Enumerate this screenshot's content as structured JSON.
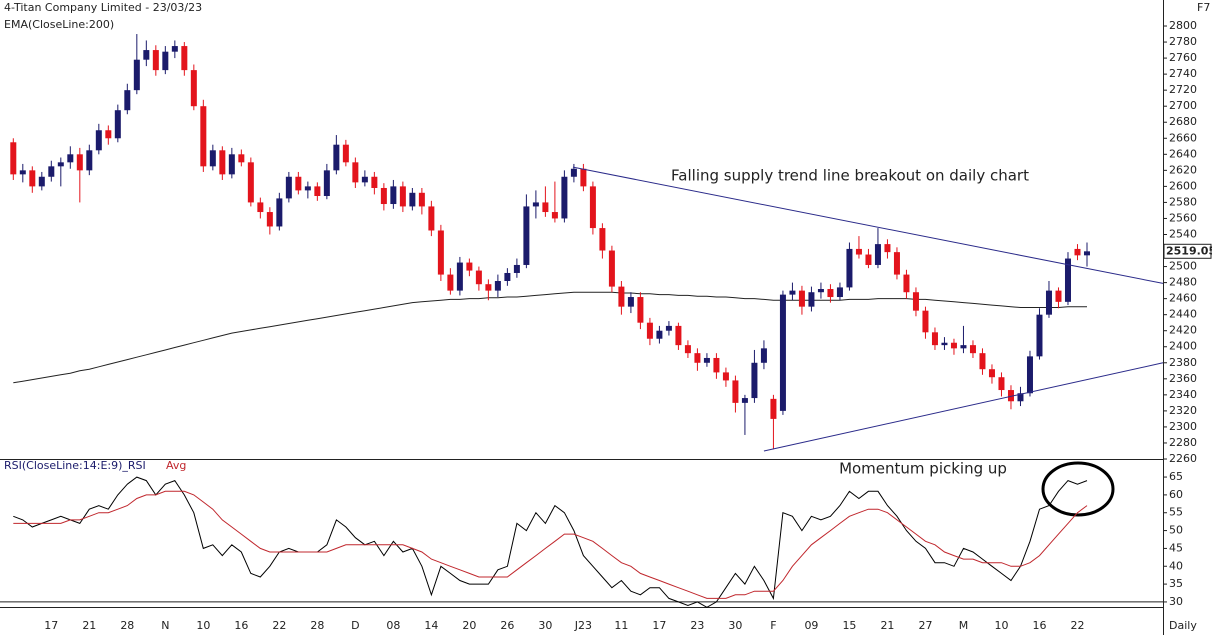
{
  "chart_data": [
    {
      "type": "candlestick",
      "title": "4-Titan Company Limited - 23/03/23",
      "corner_label": "F7",
      "x_label": "Daily",
      "annotation": "Falling supply trend line breakout on daily chart",
      "categories": [
        null,
        null,
        null,
        null,
        "17",
        null,
        null,
        null,
        "21",
        null,
        null,
        null,
        "28",
        null,
        null,
        null,
        "N",
        null,
        null,
        null,
        "10",
        null,
        null,
        null,
        "16",
        null,
        null,
        null,
        "22",
        null,
        null,
        null,
        "28",
        null,
        null,
        null,
        "D",
        null,
        null,
        null,
        "08",
        null,
        null,
        null,
        "14",
        null,
        null,
        null,
        "20",
        null,
        null,
        null,
        "26",
        null,
        null,
        null,
        "30",
        null,
        null,
        null,
        "J23",
        null,
        null,
        null,
        "11",
        null,
        null,
        null,
        "17",
        null,
        null,
        null,
        "23",
        null,
        null,
        null,
        "30",
        null,
        null,
        null,
        "F",
        null,
        null,
        null,
        "09",
        null,
        null,
        null,
        "15",
        null,
        null,
        null,
        "21",
        null,
        null,
        null,
        "27",
        null,
        null,
        null,
        "M",
        null,
        null,
        null,
        "10",
        null,
        null,
        null,
        "16",
        null,
        null,
        null,
        "22",
        null
      ],
      "xlim": [
        -1.4,
        121
      ],
      "up_color": "#1b1b6b",
      "down_color": "#e3141c",
      "candles": [
        [
          2655,
          2660,
          2608,
          2615
        ],
        [
          2615,
          2628,
          2605,
          2620
        ],
        [
          2620,
          2625,
          2592,
          2600
        ],
        [
          2600,
          2618,
          2595,
          2612
        ],
        [
          2612,
          2632,
          2606,
          2625
        ],
        [
          2625,
          2636,
          2600,
          2630
        ],
        [
          2630,
          2650,
          2622,
          2640
        ],
        [
          2640,
          2648,
          2580,
          2620
        ],
        [
          2620,
          2652,
          2614,
          2645
        ],
        [
          2645,
          2678,
          2640,
          2670
        ],
        [
          2670,
          2676,
          2652,
          2660
        ],
        [
          2660,
          2702,
          2655,
          2695
        ],
        [
          2695,
          2728,
          2690,
          2720
        ],
        [
          2720,
          2790,
          2715,
          2758
        ],
        [
          2758,
          2782,
          2750,
          2770
        ],
        [
          2770,
          2776,
          2738,
          2745
        ],
        [
          2745,
          2775,
          2740,
          2768
        ],
        [
          2768,
          2782,
          2760,
          2775
        ],
        [
          2775,
          2780,
          2738,
          2745
        ],
        [
          2745,
          2752,
          2695,
          2700
        ],
        [
          2700,
          2708,
          2618,
          2625
        ],
        [
          2625,
          2652,
          2620,
          2645
        ],
        [
          2645,
          2650,
          2608,
          2615
        ],
        [
          2615,
          2648,
          2610,
          2640
        ],
        [
          2640,
          2646,
          2625,
          2630
        ],
        [
          2630,
          2636,
          2575,
          2580
        ],
        [
          2580,
          2586,
          2560,
          2568
        ],
        [
          2568,
          2574,
          2540,
          2550
        ],
        [
          2550,
          2592,
          2545,
          2585
        ],
        [
          2585,
          2618,
          2580,
          2612
        ],
        [
          2612,
          2618,
          2590,
          2595
        ],
        [
          2595,
          2606,
          2585,
          2600
        ],
        [
          2600,
          2605,
          2582,
          2588
        ],
        [
          2588,
          2628,
          2584,
          2620
        ],
        [
          2620,
          2664,
          2615,
          2652
        ],
        [
          2652,
          2658,
          2625,
          2630
        ],
        [
          2630,
          2636,
          2598,
          2605
        ],
        [
          2605,
          2620,
          2600,
          2612
        ],
        [
          2612,
          2618,
          2590,
          2598
        ],
        [
          2598,
          2604,
          2570,
          2578
        ],
        [
          2578,
          2608,
          2572,
          2600
        ],
        [
          2600,
          2606,
          2568,
          2575
        ],
        [
          2575,
          2598,
          2570,
          2592
        ],
        [
          2592,
          2598,
          2565,
          2575
        ],
        [
          2575,
          2582,
          2538,
          2545
        ],
        [
          2545,
          2552,
          2482,
          2490
        ],
        [
          2490,
          2498,
          2465,
          2470
        ],
        [
          2470,
          2512,
          2464,
          2505
        ],
        [
          2505,
          2510,
          2488,
          2495
        ],
        [
          2495,
          2500,
          2470,
          2478
        ],
        [
          2478,
          2484,
          2458,
          2470
        ],
        [
          2470,
          2490,
          2462,
          2482
        ],
        [
          2482,
          2498,
          2476,
          2492
        ],
        [
          2492,
          2510,
          2486,
          2502
        ],
        [
          2502,
          2590,
          2498,
          2575
        ],
        [
          2575,
          2595,
          2560,
          2580
        ],
        [
          2580,
          2600,
          2562,
          2568
        ],
        [
          2568,
          2606,
          2555,
          2560
        ],
        [
          2560,
          2620,
          2555,
          2612
        ],
        [
          2612,
          2628,
          2605,
          2622
        ],
        [
          2622,
          2628,
          2594,
          2600
        ],
        [
          2600,
          2606,
          2540,
          2548
        ],
        [
          2548,
          2554,
          2510,
          2520
        ],
        [
          2520,
          2526,
          2468,
          2475
        ],
        [
          2475,
          2482,
          2440,
          2450
        ],
        [
          2450,
          2468,
          2442,
          2462
        ],
        [
          2462,
          2468,
          2422,
          2430
        ],
        [
          2430,
          2436,
          2402,
          2410
        ],
        [
          2410,
          2426,
          2404,
          2420
        ],
        [
          2420,
          2432,
          2414,
          2426
        ],
        [
          2426,
          2430,
          2396,
          2402
        ],
        [
          2402,
          2408,
          2386,
          2392
        ],
        [
          2392,
          2398,
          2370,
          2380
        ],
        [
          2380,
          2392,
          2375,
          2386
        ],
        [
          2386,
          2392,
          2360,
          2368
        ],
        [
          2368,
          2374,
          2350,
          2358
        ],
        [
          2358,
          2364,
          2318,
          2330
        ],
        [
          2330,
          2340,
          2290,
          2336
        ],
        [
          2336,
          2396,
          2330,
          2380
        ],
        [
          2380,
          2408,
          2372,
          2398
        ],
        [
          2335,
          2340,
          2272,
          2310
        ],
        [
          2320,
          2470,
          2315,
          2465
        ],
        [
          2465,
          2480,
          2458,
          2470
        ],
        [
          2470,
          2476,
          2440,
          2450
        ],
        [
          2450,
          2475,
          2444,
          2468
        ],
        [
          2468,
          2480,
          2460,
          2472
        ],
        [
          2472,
          2478,
          2455,
          2462
        ],
        [
          2462,
          2480,
          2458,
          2474
        ],
        [
          2474,
          2530,
          2470,
          2522
        ],
        [
          2522,
          2538,
          2510,
          2515
        ],
        [
          2515,
          2522,
          2498,
          2502
        ],
        [
          2502,
          2548,
          2498,
          2528
        ],
        [
          2528,
          2534,
          2510,
          2518
        ],
        [
          2518,
          2524,
          2484,
          2490
        ],
        [
          2490,
          2496,
          2460,
          2468
        ],
        [
          2468,
          2474,
          2438,
          2445
        ],
        [
          2445,
          2450,
          2410,
          2418
        ],
        [
          2418,
          2424,
          2396,
          2402
        ],
        [
          2402,
          2412,
          2396,
          2405
        ],
        [
          2405,
          2410,
          2390,
          2398
        ],
        [
          2398,
          2426,
          2392,
          2402
        ],
        [
          2402,
          2408,
          2386,
          2392
        ],
        [
          2392,
          2398,
          2365,
          2372
        ],
        [
          2372,
          2378,
          2354,
          2362
        ],
        [
          2362,
          2368,
          2338,
          2346
        ],
        [
          2346,
          2352,
          2322,
          2332
        ],
        [
          2332,
          2350,
          2326,
          2342
        ],
        [
          2342,
          2395,
          2338,
          2388
        ],
        [
          2388,
          2448,
          2384,
          2440
        ],
        [
          2440,
          2482,
          2436,
          2470
        ],
        [
          2470,
          2474,
          2448,
          2456
        ],
        [
          2456,
          2518,
          2452,
          2510
        ],
        [
          2522,
          2528,
          2508,
          2514
        ],
        [
          2514,
          2530,
          2500,
          2519
        ]
      ],
      "series": [
        {
          "name": "EMA(CloseLine:200)",
          "color": "#222222",
          "values": [
            2355,
            2357,
            2359,
            2361,
            2363,
            2365,
            2367,
            2370,
            2372,
            2375,
            2378,
            2381,
            2384,
            2387,
            2390,
            2393,
            2396,
            2399,
            2402,
            2405,
            2408,
            2411,
            2414,
            2417,
            2419,
            2421,
            2423,
            2425,
            2427,
            2429,
            2431,
            2433,
            2435,
            2437,
            2439,
            2441,
            2443,
            2445,
            2447,
            2449,
            2451,
            2453,
            2455,
            2456,
            2457,
            2458,
            2459,
            2459,
            2460,
            2460,
            2461,
            2461,
            2462,
            2462,
            2463,
            2464,
            2465,
            2466,
            2467,
            2468,
            2468,
            2468,
            2468,
            2468,
            2467,
            2467,
            2466,
            2466,
            2465,
            2465,
            2464,
            2464,
            2463,
            2463,
            2462,
            2462,
            2461,
            2460,
            2460,
            2459,
            2458,
            2458,
            2458,
            2458,
            2458,
            2458,
            2458,
            2458,
            2459,
            2459,
            2459,
            2460,
            2460,
            2460,
            2460,
            2459,
            2459,
            2458,
            2457,
            2456,
            2455,
            2454,
            2453,
            2452,
            2451,
            2450,
            2449,
            2449,
            2449,
            2449,
            2449,
            2450,
            2450,
            2450
          ]
        }
      ],
      "trendlines": [
        {
          "x": [
            58.9,
            121
          ],
          "y": [
            2624,
            2479
          ],
          "color": "#2b2b8a"
        },
        {
          "x": [
            79,
            121
          ],
          "y": [
            2270,
            2380
          ],
          "color": "#2b2b8a"
        }
      ],
      "last_price": 2519.05,
      "ylim": [
        2260,
        2810
      ],
      "yticks": [
        2260,
        2280,
        2300,
        2320,
        2340,
        2360,
        2380,
        2400,
        2420,
        2440,
        2460,
        2480,
        2500,
        2520,
        2540,
        2560,
        2580,
        2600,
        2620,
        2640,
        2660,
        2680,
        2700,
        2720,
        2740,
        2760,
        2780,
        2800
      ]
    },
    {
      "type": "line",
      "annotation": "Momentum picking up",
      "series": [
        {
          "name": "RSI(CloseLine:14:E:9)_RSI",
          "color": "#000000",
          "values": [
            54,
            53,
            51,
            52,
            53,
            54,
            53,
            52,
            56,
            57,
            56,
            60,
            63,
            65,
            64,
            60,
            63,
            64,
            60,
            55,
            45,
            46,
            43,
            46,
            44,
            38,
            37,
            40,
            44,
            45,
            44,
            44,
            44,
            46,
            53,
            51,
            48,
            46,
            47,
            43,
            47,
            44,
            45,
            40,
            32,
            40,
            38,
            36,
            35,
            35,
            35,
            39,
            40,
            52,
            50,
            55,
            52,
            57,
            55,
            50,
            43,
            40,
            37,
            34,
            36,
            33,
            32,
            34,
            34,
            31,
            30,
            29,
            30,
            28.5,
            30,
            34,
            38,
            35,
            40,
            36,
            31,
            55,
            54,
            50,
            54,
            53,
            54,
            57,
            61,
            59,
            61,
            61,
            57,
            54,
            50,
            47,
            45,
            41,
            41,
            40,
            45,
            44,
            42,
            40,
            38,
            36,
            40,
            47,
            56,
            57,
            61,
            64,
            63,
            64
          ]
        },
        {
          "name": "Avg",
          "color": "#c0272d",
          "values": [
            52,
            52,
            52,
            52,
            52,
            52,
            53,
            53,
            54,
            55,
            55,
            56,
            57,
            59,
            60,
            60,
            61,
            61,
            61,
            60,
            58,
            56,
            53,
            51,
            49,
            47,
            45,
            44,
            44,
            44,
            44,
            44,
            44,
            44,
            45,
            46,
            46,
            46,
            46,
            46,
            46,
            46,
            45,
            44,
            42,
            41,
            40,
            39,
            38,
            37,
            37,
            37,
            37,
            39,
            41,
            43,
            45,
            47,
            49,
            49,
            48,
            47,
            45,
            43,
            41,
            40,
            38,
            37,
            36,
            35,
            34,
            33,
            32,
            31,
            31,
            31,
            32,
            32,
            33,
            33,
            33,
            36,
            40,
            43,
            46,
            48,
            50,
            52,
            54,
            55,
            56,
            56,
            55,
            53,
            51,
            49,
            47,
            46,
            44,
            43,
            42,
            42,
            41,
            41,
            41,
            40,
            40,
            41,
            43,
            46,
            49,
            52,
            55,
            57
          ]
        }
      ],
      "hlines": [
        30
      ],
      "ylim": [
        28.3,
        69.5
      ],
      "yticks": [
        30,
        35,
        40,
        45,
        50,
        55,
        60,
        65
      ]
    }
  ]
}
